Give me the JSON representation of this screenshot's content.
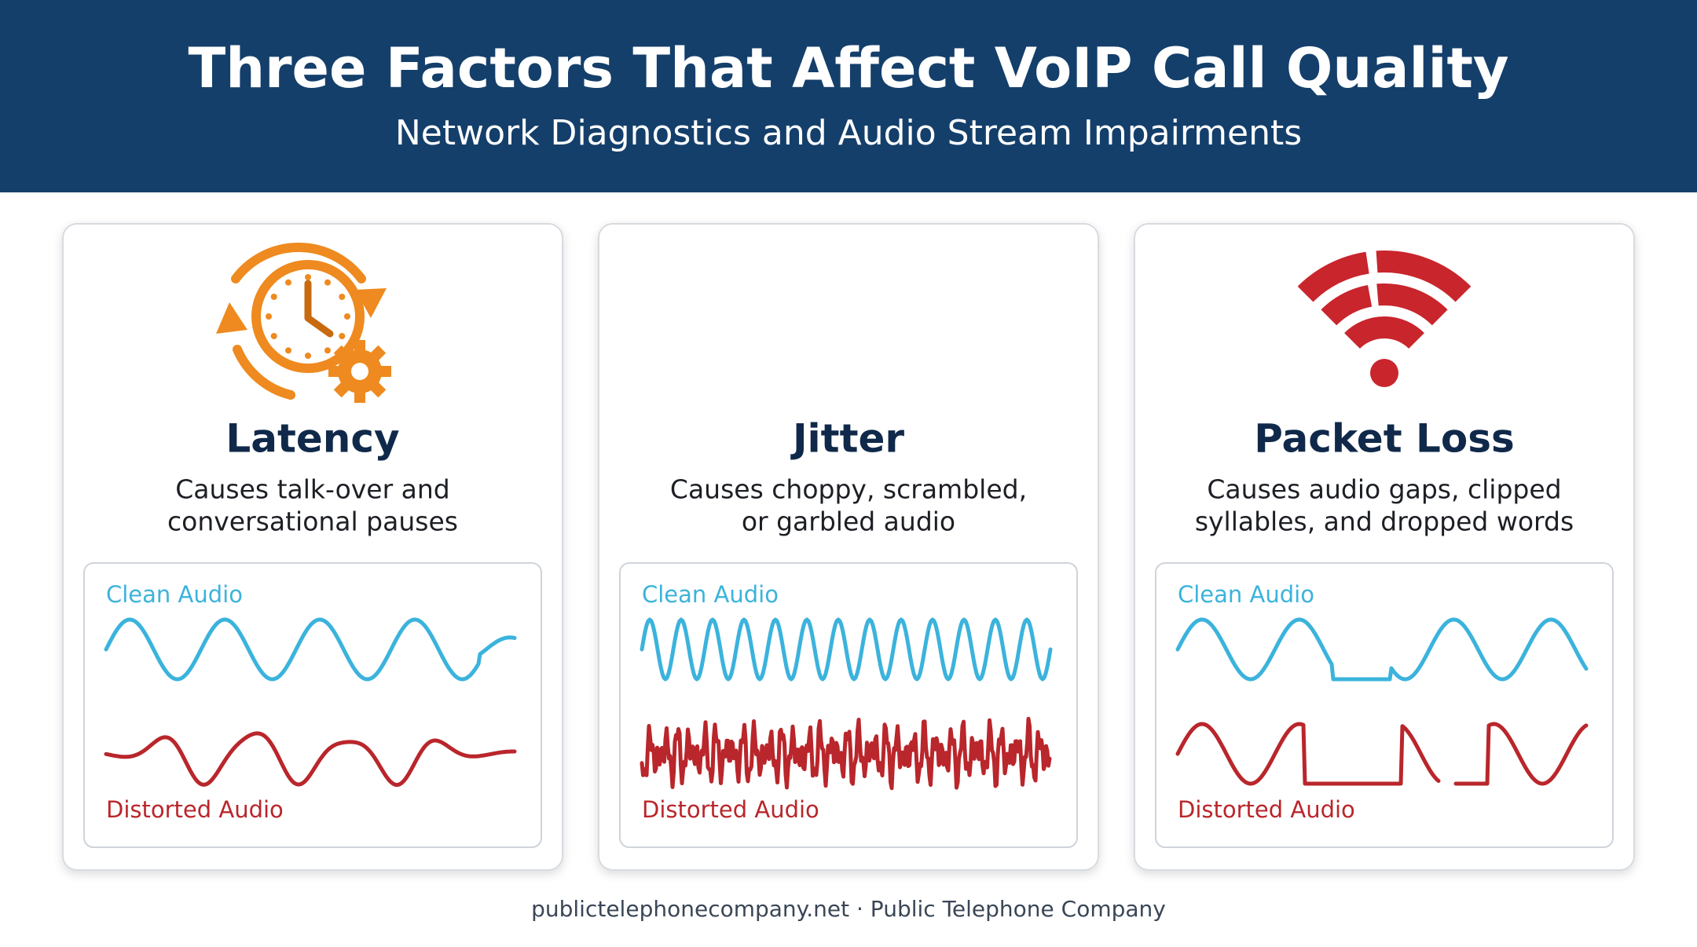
{
  "header": {
    "title": "Three Factors That Affect VoIP Call Quality",
    "subtitle": "Network Diagnostics and Audio Stream Impairments"
  },
  "cards": [
    {
      "title": "Latency",
      "description_lines": [
        "Causes talk-over and",
        "conversational pauses"
      ],
      "clean_label": "Clean Audio",
      "distorted_label": "Distorted Audio"
    },
    {
      "title": "Jitter",
      "description_lines": [
        "Causes choppy, scrambled,",
        "or garbled audio"
      ],
      "clean_label": "Clean Audio",
      "distorted_label": "Distorted Audio"
    },
    {
      "title": "Packet Loss",
      "description_lines": [
        "Causes audio gaps, clipped",
        "syllables, and dropped words"
      ],
      "clean_label": "Clean Audio",
      "distorted_label": "Distorted Audio"
    }
  ],
  "footer": "publictelephonecompany.net · Public Telephone Company"
}
